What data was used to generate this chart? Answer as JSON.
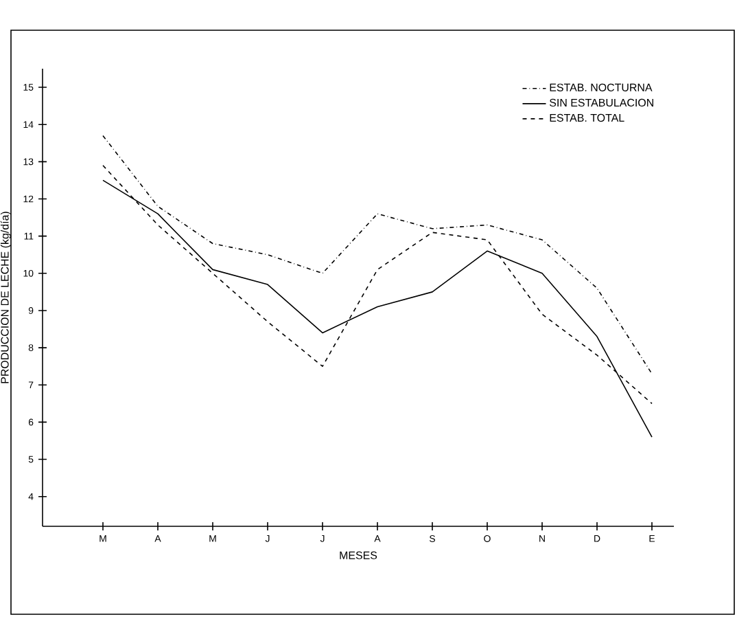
{
  "chart_data": {
    "type": "line",
    "xlabel": "MESES",
    "ylabel": "PRODUCCION DE LECHE (kg/día)",
    "categories": [
      "M",
      "A",
      "M",
      "J",
      "J",
      "A",
      "S",
      "O",
      "N",
      "D",
      "E"
    ],
    "ylim": [
      3.2,
      15.5
    ],
    "yticks": [
      4,
      5,
      6,
      7,
      8,
      9,
      10,
      11,
      12,
      13,
      14,
      15
    ],
    "legend": "top right",
    "grid": false,
    "marker": "none",
    "series": [
      {
        "name": "ESTAB. NOCTURNA",
        "color": "#000000",
        "line_style": "dashdot",
        "values": [
          13.7,
          11.8,
          10.8,
          10.5,
          10.0,
          11.6,
          11.2,
          11.3,
          10.9,
          9.6,
          7.3
        ]
      },
      {
        "name": "SIN ESTABULACION",
        "color": "#000000",
        "line_style": "solid",
        "values": [
          12.5,
          11.6,
          10.1,
          9.7,
          8.4,
          9.1,
          9.5,
          10.6,
          10.0,
          8.3,
          5.6
        ]
      },
      {
        "name": "ESTAB. TOTAL",
        "color": "#000000",
        "line_style": "dashed",
        "values": [
          12.9,
          11.3,
          10.0,
          8.7,
          7.5,
          10.1,
          11.1,
          10.9,
          8.9,
          7.8,
          6.5
        ]
      }
    ]
  }
}
